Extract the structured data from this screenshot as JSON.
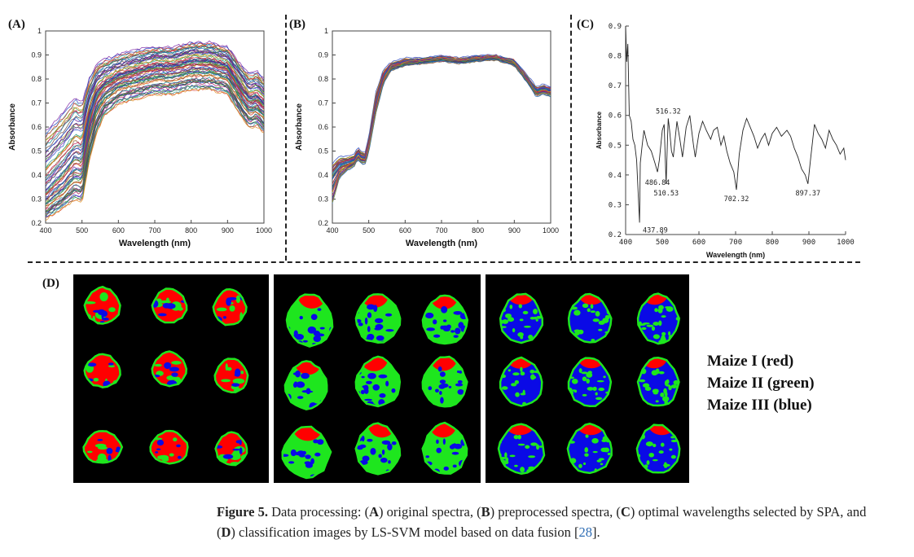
{
  "panels": {
    "a": "(A)",
    "b": "(B)",
    "c": "(C)",
    "d": "(D)"
  },
  "chart_data": [
    {
      "id": "A",
      "type": "line",
      "title": "",
      "xlabel": "Wavelength (nm)",
      "ylabel": "Absorbance",
      "xlim": [
        400,
        1000
      ],
      "ylim": [
        0.2,
        1.0
      ],
      "xticks": [
        400,
        500,
        600,
        700,
        800,
        900,
        1000
      ],
      "yticks": [
        0.2,
        0.3,
        0.4,
        0.5,
        0.6,
        0.7,
        0.8,
        0.9,
        1
      ],
      "x": [
        400,
        450,
        480,
        500,
        520,
        540,
        560,
        600,
        650,
        700,
        750,
        800,
        850,
        900,
        940,
        960,
        980,
        1000
      ],
      "series": [
        {
          "name": "upper",
          "values": [
            0.58,
            0.66,
            0.72,
            0.7,
            0.8,
            0.86,
            0.88,
            0.9,
            0.92,
            0.93,
            0.93,
            0.95,
            0.95,
            0.93,
            0.85,
            0.82,
            0.83,
            0.8
          ]
        },
        {
          "name": "upper-mid",
          "values": [
            0.44,
            0.52,
            0.58,
            0.57,
            0.7,
            0.78,
            0.81,
            0.84,
            0.86,
            0.88,
            0.88,
            0.9,
            0.9,
            0.88,
            0.79,
            0.75,
            0.76,
            0.73
          ]
        },
        {
          "name": "middle",
          "values": [
            0.32,
            0.4,
            0.46,
            0.45,
            0.62,
            0.72,
            0.76,
            0.8,
            0.82,
            0.84,
            0.84,
            0.86,
            0.86,
            0.84,
            0.74,
            0.7,
            0.71,
            0.68
          ]
        },
        {
          "name": "lower-mid",
          "values": [
            0.27,
            0.33,
            0.38,
            0.37,
            0.55,
            0.66,
            0.71,
            0.76,
            0.78,
            0.8,
            0.8,
            0.82,
            0.82,
            0.8,
            0.7,
            0.66,
            0.67,
            0.64
          ]
        },
        {
          "name": "lower",
          "values": [
            0.22,
            0.27,
            0.3,
            0.29,
            0.46,
            0.58,
            0.65,
            0.7,
            0.72,
            0.74,
            0.74,
            0.76,
            0.76,
            0.74,
            0.64,
            0.6,
            0.61,
            0.58
          ]
        }
      ]
    },
    {
      "id": "B",
      "type": "line",
      "title": "",
      "xlabel": "Wavelength (nm)",
      "ylabel": "Absorbance",
      "xlim": [
        400,
        1000
      ],
      "ylim": [
        0.2,
        1.0
      ],
      "xticks": [
        400,
        500,
        600,
        700,
        800,
        900,
        1000
      ],
      "yticks": [
        0.2,
        0.3,
        0.4,
        0.5,
        0.6,
        0.7,
        0.8,
        0.9,
        1
      ],
      "x": [
        400,
        420,
        440,
        460,
        470,
        480,
        490,
        500,
        520,
        540,
        560,
        600,
        650,
        700,
        750,
        800,
        850,
        900,
        940,
        960,
        980,
        1000
      ],
      "series": [
        {
          "name": "upper",
          "values": [
            0.44,
            0.47,
            0.47,
            0.48,
            0.51,
            0.49,
            0.49,
            0.55,
            0.74,
            0.83,
            0.86,
            0.88,
            0.88,
            0.89,
            0.88,
            0.89,
            0.89,
            0.87,
            0.8,
            0.76,
            0.77,
            0.76
          ]
        },
        {
          "name": "middle",
          "values": [
            0.4,
            0.44,
            0.45,
            0.46,
            0.49,
            0.47,
            0.47,
            0.52,
            0.7,
            0.81,
            0.85,
            0.87,
            0.875,
            0.885,
            0.875,
            0.885,
            0.89,
            0.87,
            0.79,
            0.75,
            0.76,
            0.75
          ]
        },
        {
          "name": "lower",
          "values": [
            0.28,
            0.39,
            0.42,
            0.44,
            0.47,
            0.45,
            0.45,
            0.5,
            0.66,
            0.78,
            0.84,
            0.86,
            0.87,
            0.88,
            0.87,
            0.88,
            0.885,
            0.86,
            0.78,
            0.73,
            0.74,
            0.73
          ]
        }
      ]
    },
    {
      "id": "C",
      "type": "line",
      "title": "",
      "xlabel": "Wavelength (nm)",
      "ylabel": "Absorbance",
      "xlim": [
        400,
        1000
      ],
      "ylim": [
        0.2,
        0.9
      ],
      "xticks": [
        400,
        500,
        600,
        700,
        800,
        900,
        1000
      ],
      "yticks": [
        0.2,
        0.3,
        0.4,
        0.5,
        0.6,
        0.7,
        0.8,
        0.9
      ],
      "x": [
        400,
        403,
        406,
        410,
        415,
        420,
        425,
        430,
        437.89,
        440,
        445,
        450,
        460,
        470,
        480,
        486.84,
        492,
        500,
        505,
        510.53,
        514,
        516.32,
        520,
        525,
        530,
        540,
        548,
        555,
        565,
        575,
        585,
        590,
        600,
        610,
        620,
        632,
        640,
        650,
        660,
        668,
        676,
        685,
        695,
        702.32,
        710,
        720,
        730,
        740,
        750,
        760,
        770,
        780,
        790,
        800,
        812,
        825,
        840,
        850,
        860,
        870,
        880,
        890,
        897.37,
        905,
        915,
        925,
        935,
        945,
        955,
        965,
        975,
        985,
        995,
        1000
      ],
      "values": [
        0.9,
        0.78,
        0.84,
        0.6,
        0.58,
        0.52,
        0.5,
        0.45,
        0.24,
        0.44,
        0.5,
        0.55,
        0.5,
        0.48,
        0.44,
        0.41,
        0.45,
        0.55,
        0.57,
        0.37,
        0.51,
        0.59,
        0.55,
        0.48,
        0.46,
        0.58,
        0.52,
        0.46,
        0.56,
        0.6,
        0.5,
        0.46,
        0.54,
        0.58,
        0.55,
        0.52,
        0.55,
        0.56,
        0.5,
        0.53,
        0.48,
        0.44,
        0.41,
        0.35,
        0.47,
        0.55,
        0.59,
        0.56,
        0.53,
        0.49,
        0.52,
        0.54,
        0.5,
        0.54,
        0.56,
        0.53,
        0.55,
        0.53,
        0.49,
        0.46,
        0.42,
        0.4,
        0.37,
        0.46,
        0.57,
        0.54,
        0.52,
        0.49,
        0.55,
        0.52,
        0.5,
        0.47,
        0.49,
        0.45
      ],
      "annotations": [
        {
          "label": "516.32",
          "x": 516.32,
          "y": 0.59
        },
        {
          "label": "486.84",
          "x": 486.84,
          "y": 0.41
        },
        {
          "label": "510.53",
          "x": 510.53,
          "y": 0.37
        },
        {
          "label": "437.89",
          "x": 437.89,
          "y": 0.24
        },
        {
          "label": "702.32",
          "x": 702.32,
          "y": 0.35
        },
        {
          "label": "897.37",
          "x": 897.37,
          "y": 0.37
        }
      ]
    }
  ],
  "legend": {
    "line1": "Maize I (red)",
    "line2": "Maize II (green)",
    "line3": "Maize III (blue)"
  },
  "colors": {
    "maize_i": "#ff0000",
    "maize_ii": "#1ee61e",
    "maize_iii": "#0a0ae6",
    "background": "#000000"
  },
  "caption": {
    "prefix": "Figure 5.",
    "t1": " Data processing: (",
    "a": "A",
    "t2": ") original spectra, (",
    "b": "B",
    "t3": ") preprocessed spectra, (",
    "c": "C",
    "t4": ") optimal wavelengths selected by SPA, and (",
    "d": "D",
    "t5": ") classification images by LS-SVM model based on data fusion [",
    "ref": "28",
    "t6": "]."
  }
}
